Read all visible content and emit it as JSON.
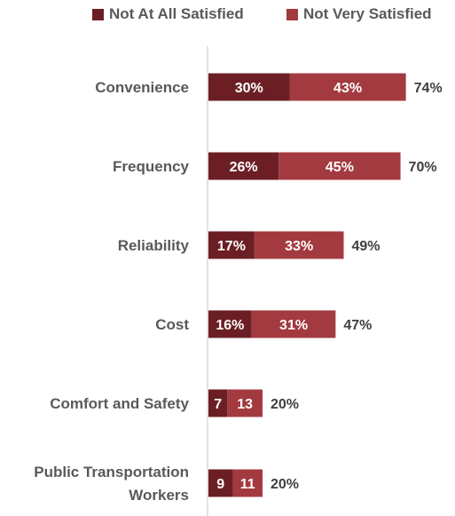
{
  "chart_data": {
    "type": "bar",
    "orientation": "horizontal",
    "stacked": true,
    "categories": [
      "Convenience",
      "Frequency",
      "Reliability",
      "Cost",
      "Comfort and Safety",
      "Public Transportation Workers"
    ],
    "series": [
      {
        "name": "Not At All Satisfied",
        "color": "#6b1f24",
        "values": [
          30,
          26,
          17,
          16,
          7,
          9
        ],
        "labels": [
          "30%",
          "26%",
          "17%",
          "16%",
          "7",
          "9"
        ]
      },
      {
        "name": "Not Very Satisfied",
        "color": "#a33a3f",
        "values": [
          43,
          45,
          33,
          31,
          13,
          11
        ],
        "labels": [
          "43%",
          "45%",
          "33%",
          "31%",
          "13",
          "11"
        ]
      }
    ],
    "totals": [
      "74%",
      "70%",
      "49%",
      "47%",
      "20%",
      "20%"
    ],
    "xlim": [
      0,
      100
    ],
    "grid": false,
    "legend_position": "top"
  }
}
